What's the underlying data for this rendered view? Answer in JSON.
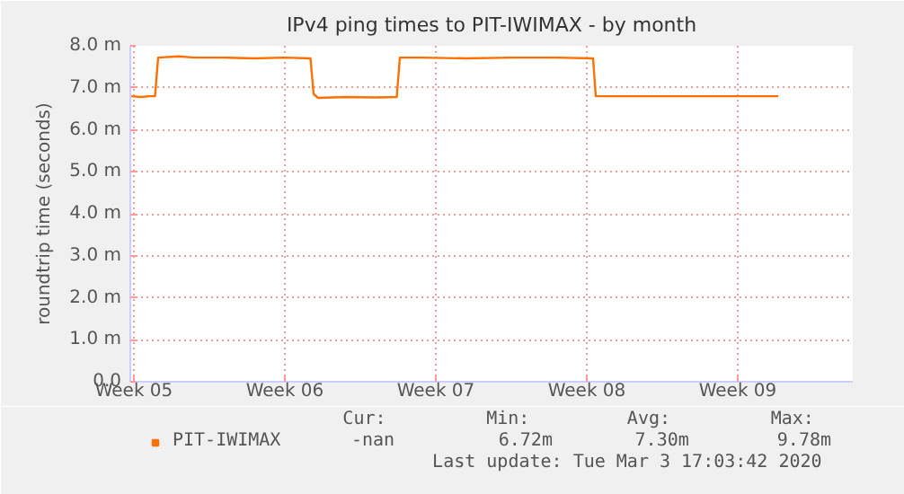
{
  "chart_data": {
    "type": "line",
    "title": "IPv4 ping times to PIT-IWIMAX - by month",
    "ylabel": "roundtrip time (seconds)",
    "x": [
      "2020-01-26T21:00",
      "2020-01-27T08:00",
      "2020-01-27T17:00",
      "2020-01-27T23:30",
      "2020-01-28T03:00",
      "2020-01-29T02:00",
      "2020-01-29T19:00",
      "2020-01-31T05:00",
      "2020-02-01T14:00",
      "2020-02-03T00:00",
      "2020-02-04T04:30",
      "2020-02-04T08:00",
      "2020-02-04T13:00",
      "2020-02-05T19:00",
      "2020-02-07T05:00",
      "2020-02-08T04:30",
      "2020-02-08T08:00",
      "2020-02-09T07:00",
      "2020-02-11T10:00",
      "2020-02-13T12:00",
      "2020-02-15T14:00",
      "2020-02-17T07:00",
      "2020-02-17T10:00",
      "2020-02-19T02:00",
      "2020-02-21T05:00",
      "2020-02-23T07:00",
      "2020-02-25T21:00"
    ],
    "series": [
      {
        "name": "PIT-IWIMAX",
        "color": "#ff7000",
        "values": [
          6.8,
          6.78,
          6.8,
          6.8,
          7.72,
          7.75,
          7.72,
          7.72,
          7.7,
          7.72,
          7.7,
          6.85,
          6.76,
          6.78,
          6.77,
          6.78,
          7.72,
          7.72,
          7.7,
          7.72,
          7.72,
          7.7,
          6.8,
          6.8,
          6.8,
          6.8,
          6.8
        ]
      }
    ],
    "xlim": [
      "2020-01-26T20:00",
      "2020-02-29T08:00"
    ],
    "xticks": [
      {
        "value": "2020-01-27",
        "label": "Week 05"
      },
      {
        "value": "2020-02-03",
        "label": "Week 06"
      },
      {
        "value": "2020-02-10",
        "label": "Week 07"
      },
      {
        "value": "2020-02-17",
        "label": "Week 08"
      },
      {
        "value": "2020-02-24",
        "label": "Week 09"
      }
    ],
    "ylim": [
      0,
      8.0
    ],
    "yticks": [
      {
        "value": 0,
        "label": "0.0"
      },
      {
        "value": 1,
        "label": "1.0 m"
      },
      {
        "value": 2,
        "label": "2.0 m"
      },
      {
        "value": 3,
        "label": "3.0 m"
      },
      {
        "value": 4,
        "label": "4.0 m"
      },
      {
        "value": 5,
        "label": "5.0 m"
      },
      {
        "value": 6,
        "label": "6.0 m"
      },
      {
        "value": 7,
        "label": "7.0 m"
      },
      {
        "value": 8,
        "label": "8.0 m"
      }
    ],
    "grid": true,
    "legend": "bottom left",
    "marker": "none",
    "line_style": "solid",
    "annotations": [
      "Cur:",
      "Min:",
      "Avg:",
      "Max:",
      "-nan",
      "6.72m",
      "7.30m",
      "9.78m",
      "Last update: Tue Mar  3 17:03:42 2020"
    ]
  }
}
